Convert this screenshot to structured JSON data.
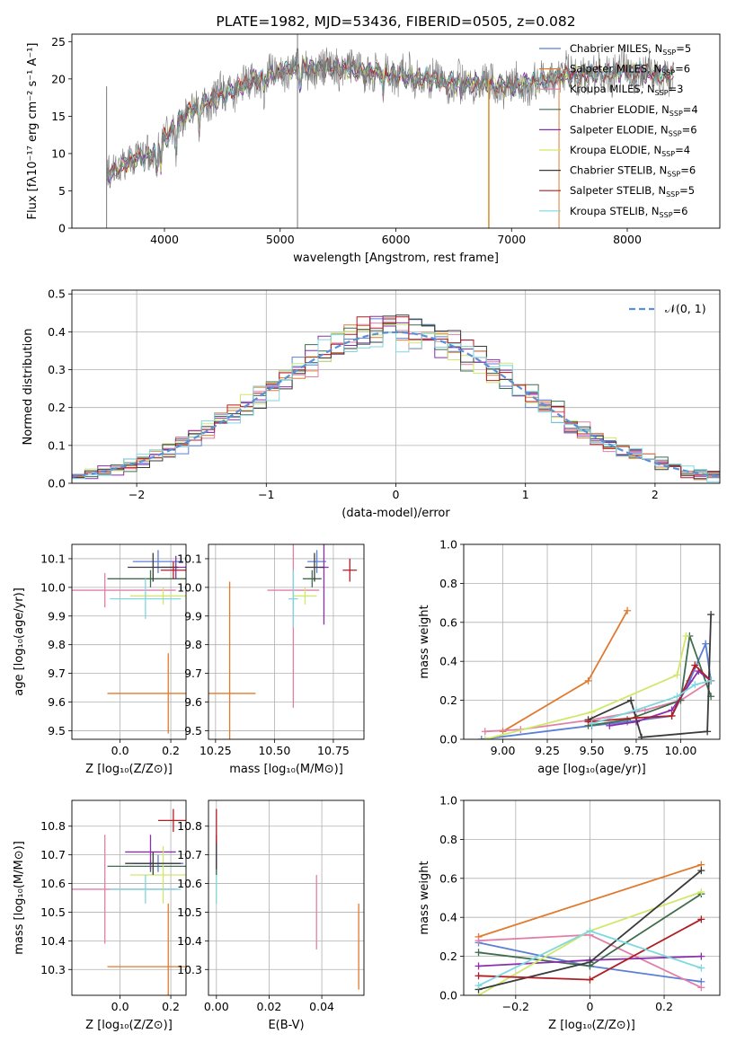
{
  "colors": [
    "#5b7fd6",
    "#e07a2e",
    "#e27fa8",
    "#3f6e4e",
    "#8a2fae",
    "#cfe86a",
    "#3a3a3a",
    "#b01e24",
    "#7fd7df"
  ],
  "chart_data": [
    {
      "id": "spectrum",
      "type": "line",
      "title": "PLATE=1982, MJD=53436, FIBERID=0505, z=0.082",
      "xlabel": "wavelength [Angstrom, rest frame]",
      "ylabel": "Flux [fλ10⁻¹⁷ erg cm⁻² s⁻¹ A⁻¹]",
      "xlim": [
        3200,
        8800
      ],
      "ylim": [
        0,
        26
      ],
      "xticks": [
        4000,
        5000,
        6000,
        7000,
        8000
      ],
      "yticks": [
        0,
        5,
        10,
        15,
        20,
        25
      ],
      "continuum": [
        [
          3500,
          7
        ],
        [
          3700,
          9
        ],
        [
          3900,
          10
        ],
        [
          4000,
          12
        ],
        [
          4200,
          15.5
        ],
        [
          4400,
          17
        ],
        [
          4600,
          18.5
        ],
        [
          4800,
          20
        ],
        [
          5000,
          21
        ],
        [
          5200,
          21.5
        ],
        [
          5500,
          21.5
        ],
        [
          6000,
          20.5
        ],
        [
          6500,
          19.5
        ],
        [
          7000,
          19
        ],
        [
          7500,
          20.5
        ],
        [
          8000,
          21
        ],
        [
          8400,
          20.5
        ]
      ],
      "legend": [
        {
          "name": "Chabrier MILES, N",
          "sub": "SSP",
          "suffix": "=5"
        },
        {
          "name": "Salpeter MILES, N",
          "sub": "SSP",
          "suffix": "=6"
        },
        {
          "name": "Kroupa MILES, N",
          "sub": "SSP",
          "suffix": "=3"
        },
        {
          "name": "Chabrier ELODIE, N",
          "sub": "SSP",
          "suffix": "=4"
        },
        {
          "name": "Salpeter ELODIE, N",
          "sub": "SSP",
          "suffix": "=6"
        },
        {
          "name": "Kroupa ELODIE, N",
          "sub": "SSP",
          "suffix": "=4"
        },
        {
          "name": "Chabrier STELIB, N",
          "sub": "SSP",
          "suffix": "=6"
        },
        {
          "name": "Salpeter STELIB, N",
          "sub": "SSP",
          "suffix": "=5"
        },
        {
          "name": "Kroupa STELIB, N",
          "sub": "SSP",
          "suffix": "=6"
        }
      ],
      "legend_position": "right"
    },
    {
      "id": "residuals",
      "type": "histogram",
      "xlabel": "(data-model)/error",
      "ylabel": "Normed distribution",
      "xlim": [
        -2.5,
        2.5
      ],
      "ylim": [
        0,
        0.51
      ],
      "xticks": [
        -2,
        -1,
        0,
        1,
        2
      ],
      "yticks": [
        0.0,
        0.1,
        0.2,
        0.3,
        0.4,
        0.5
      ],
      "grid": true,
      "bin_width": 0.1,
      "series_count": 9,
      "legend": [
        {
          "name": "𝒩(0, 1)"
        }
      ],
      "legend_position": "top-right"
    },
    {
      "id": "age-vs-z",
      "type": "errorbar",
      "xlabel": "Z [log₁₀(Z/Z⊙)]",
      "ylabel": "age  [log₁₀(age/yr)]",
      "xlim": [
        -0.19,
        0.26
      ],
      "ylim": [
        9.47,
        10.15
      ],
      "xticks": [
        0.0,
        0.2
      ],
      "yticks": [
        9.5,
        9.6,
        9.7,
        9.8,
        9.9,
        10.0,
        10.1
      ],
      "grid": true,
      "points": [
        {
          "series": 0,
          "x": 0.15,
          "y": 10.09,
          "xerr": 0.1,
          "yerr": 0.04
        },
        {
          "series": 1,
          "x": 0.19,
          "y": 9.63,
          "xerr": 0.24,
          "yerr": 0.14
        },
        {
          "series": 2,
          "x": -0.06,
          "y": 9.99,
          "xerr": 0.28,
          "yerr": 0.06
        },
        {
          "series": 3,
          "x": 0.12,
          "y": 10.03,
          "xerr": 0.17,
          "yerr": 0.03
        },
        {
          "series": 4,
          "x": 0.22,
          "y": 10.07,
          "xerr": 0.06,
          "yerr": 0.04
        },
        {
          "series": 5,
          "x": 0.17,
          "y": 9.97,
          "xerr": 0.13,
          "yerr": 0.03
        },
        {
          "series": 6,
          "x": 0.13,
          "y": 10.07,
          "xerr": 0.1,
          "yerr": 0.05
        },
        {
          "series": 7,
          "x": 0.21,
          "y": 10.06,
          "xerr": 0.05,
          "yerr": 0.03
        },
        {
          "series": 8,
          "x": 0.1,
          "y": 9.96,
          "xerr": 0.14,
          "yerr": 0.07
        }
      ]
    },
    {
      "id": "age-vs-mass",
      "type": "errorbar",
      "xlabel": "mass [log₁₀(M/M⊙)]",
      "ylabel": "",
      "xlim": [
        10.22,
        10.88
      ],
      "ylim": [
        9.47,
        10.15
      ],
      "xticks": [
        10.25,
        10.5,
        10.75
      ],
      "yticks": [
        9.5,
        9.6,
        9.7,
        9.8,
        9.9,
        10.0,
        10.1
      ],
      "grid": true,
      "points": [
        {
          "series": 0,
          "x": 10.68,
          "y": 10.09,
          "xerr": 0.04,
          "yerr": 0.04
        },
        {
          "series": 1,
          "x": 10.31,
          "y": 9.63,
          "xerr": 0.11,
          "yerr": 0.39
        },
        {
          "series": 2,
          "x": 10.58,
          "y": 9.99,
          "xerr": 0.11,
          "yerr": 0.41
        },
        {
          "series": 3,
          "x": 10.66,
          "y": 10.03,
          "xerr": 0.04,
          "yerr": 0.03
        },
        {
          "series": 4,
          "x": 10.71,
          "y": 10.07,
          "xerr": 0.02,
          "yerr": 0.2
        },
        {
          "series": 5,
          "x": 10.63,
          "y": 9.97,
          "xerr": 0.05,
          "yerr": 0.03
        },
        {
          "series": 6,
          "x": 10.67,
          "y": 10.07,
          "xerr": 0.04,
          "yerr": 0.05
        },
        {
          "series": 7,
          "x": 10.82,
          "y": 10.06,
          "xerr": 0.03,
          "yerr": 0.04
        },
        {
          "series": 8,
          "x": 10.58,
          "y": 9.96,
          "xerr": 0.02,
          "yerr": 0.1
        }
      ]
    },
    {
      "id": "weight-vs-age",
      "type": "line",
      "xlabel": "age  [log₁₀(age/yr)]",
      "ylabel": "mass weight",
      "xlim": [
        8.78,
        10.22
      ],
      "ylim": [
        0,
        1
      ],
      "xticks": [
        9.0,
        9.25,
        9.5,
        9.75,
        10.0
      ],
      "yticks": [
        0.0,
        0.2,
        0.4,
        0.6,
        0.8,
        1.0
      ],
      "grid": true,
      "series": [
        {
          "series": 0,
          "x": [
            8.88,
            9.5,
            9.7,
            9.95,
            10.05,
            10.14,
            10.17
          ],
          "y": [
            0.0,
            0.07,
            0.09,
            0.12,
            0.3,
            0.49,
            0.3
          ]
        },
        {
          "series": 1,
          "x": [
            9.0,
            9.48,
            9.7
          ],
          "y": [
            0.04,
            0.3,
            0.66
          ]
        },
        {
          "series": 2,
          "x": [
            8.9,
            9.1,
            9.5,
            9.8,
            10.0,
            10.17
          ],
          "y": [
            0.04,
            0.05,
            0.1,
            0.15,
            0.2,
            0.3
          ]
        },
        {
          "series": 3,
          "x": [
            9.48,
            9.7,
            10.0,
            10.05,
            10.17
          ],
          "y": [
            0.07,
            0.1,
            0.2,
            0.53,
            0.22
          ]
        },
        {
          "series": 4,
          "x": [
            9.6,
            9.75,
            9.95,
            10.1,
            10.17
          ],
          "y": [
            0.07,
            0.09,
            0.15,
            0.35,
            0.3
          ]
        },
        {
          "series": 5,
          "x": [
            8.9,
            9.5,
            9.98,
            10.03
          ],
          "y": [
            0.0,
            0.14,
            0.33,
            0.53
          ]
        },
        {
          "series": 6,
          "x": [
            9.48,
            9.72,
            9.78,
            10.15,
            10.17
          ],
          "y": [
            0.1,
            0.2,
            0.01,
            0.04,
            0.64
          ]
        },
        {
          "series": 7,
          "x": [
            9.48,
            9.75,
            9.95,
            10.08,
            10.17
          ],
          "y": [
            0.09,
            0.11,
            0.12,
            0.38,
            0.3
          ]
        },
        {
          "series": 8,
          "x": [
            9.5,
            9.75,
            9.98,
            10.08,
            10.17
          ],
          "y": [
            0.08,
            0.15,
            0.22,
            0.28,
            0.3
          ]
        }
      ]
    },
    {
      "id": "mass-vs-z",
      "type": "errorbar",
      "xlabel": "Z [log₁₀(Z/Z⊙)]",
      "ylabel": "mass [log₁₀(M/M⊙)]",
      "xlim": [
        -0.19,
        0.26
      ],
      "ylim": [
        10.21,
        10.89
      ],
      "xticks": [
        0.0,
        0.2
      ],
      "yticks": [
        10.3,
        10.4,
        10.5,
        10.6,
        10.7,
        10.8
      ],
      "grid": true,
      "points": [
        {
          "series": 0,
          "x": 0.15,
          "y": 10.67,
          "xerr": 0.1,
          "yerr": 0.03
        },
        {
          "series": 1,
          "x": 0.19,
          "y": 10.31,
          "xerr": 0.24,
          "yerr": 0.22
        },
        {
          "series": 2,
          "x": -0.06,
          "y": 10.58,
          "xerr": 0.28,
          "yerr": 0.19
        },
        {
          "series": 3,
          "x": 0.12,
          "y": 10.66,
          "xerr": 0.17,
          "yerr": 0.02
        },
        {
          "series": 4,
          "x": 0.12,
          "y": 10.71,
          "xerr": 0.1,
          "yerr": 0.06
        },
        {
          "series": 5,
          "x": 0.17,
          "y": 10.63,
          "xerr": 0.13,
          "yerr": 0.1
        },
        {
          "series": 6,
          "x": 0.13,
          "y": 10.67,
          "xerr": 0.11,
          "yerr": 0.04
        },
        {
          "series": 7,
          "x": 0.21,
          "y": 10.82,
          "xerr": 0.06,
          "yerr": 0.04
        },
        {
          "series": 8,
          "x": 0.1,
          "y": 10.58,
          "xerr": 0.14,
          "yerr": 0.05
        }
      ]
    },
    {
      "id": "mass-vs-ebv",
      "type": "errorbar",
      "xlabel": "E(B-V)",
      "ylabel": "",
      "xlim": [
        -0.003,
        0.056
      ],
      "ylim": [
        10.21,
        10.89
      ],
      "xticks": [
        0.0,
        0.02,
        0.04
      ],
      "yticks": [
        10.3,
        10.4,
        10.5,
        10.6,
        10.7,
        10.8
      ],
      "grid": true,
      "points": [
        {
          "series": 0,
          "x": 0.0,
          "y": 10.67,
          "xerr": 0,
          "yerr": 0.04
        },
        {
          "series": 1,
          "x": 0.054,
          "y": 10.38,
          "xerr": 0,
          "yerr": 0.15
        },
        {
          "series": 2,
          "x": 0.038,
          "y": 10.5,
          "xerr": 0,
          "yerr": 0.13
        },
        {
          "series": 3,
          "x": 0.0,
          "y": 10.66,
          "xerr": 0,
          "yerr": 0.03
        },
        {
          "series": 4,
          "x": 0.0,
          "y": 10.71,
          "xerr": 0,
          "yerr": 0.06
        },
        {
          "series": 5,
          "x": 0.0,
          "y": 10.58,
          "xerr": 0,
          "yerr": 0.05
        },
        {
          "series": 6,
          "x": 0.0,
          "y": 10.7,
          "xerr": 0,
          "yerr": 0.05
        },
        {
          "series": 7,
          "x": 0.0,
          "y": 10.8,
          "xerr": 0,
          "yerr": 0.06
        },
        {
          "series": 8,
          "x": 0.0,
          "y": 10.58,
          "xerr": 0,
          "yerr": 0.05
        }
      ]
    },
    {
      "id": "weight-vs-z",
      "type": "line",
      "xlabel": "Z [log₁₀(Z/Z⊙)]",
      "ylabel": "mass weight",
      "xlim": [
        -0.34,
        0.35
      ],
      "ylim": [
        0,
        1
      ],
      "xticks": [
        -0.2,
        0.0,
        0.2
      ],
      "yticks": [
        0.0,
        0.2,
        0.4,
        0.6,
        0.8,
        1.0
      ],
      "grid": true,
      "series": [
        {
          "series": 0,
          "x": [
            -0.3,
            0.0,
            0.3
          ],
          "y": [
            0.27,
            0.15,
            0.07
          ]
        },
        {
          "series": 1,
          "x": [
            -0.3,
            0.3
          ],
          "y": [
            0.3,
            0.67
          ]
        },
        {
          "series": 2,
          "x": [
            -0.3,
            0.0,
            0.3
          ],
          "y": [
            0.28,
            0.31,
            0.04
          ]
        },
        {
          "series": 3,
          "x": [
            -0.3,
            0.0,
            0.3
          ],
          "y": [
            0.22,
            0.15,
            0.52
          ]
        },
        {
          "series": 4,
          "x": [
            -0.3,
            0.0,
            0.3
          ],
          "y": [
            0.15,
            0.18,
            0.2
          ]
        },
        {
          "series": 5,
          "x": [
            -0.3,
            0.0,
            0.3
          ],
          "y": [
            0.0,
            0.33,
            0.53
          ]
        },
        {
          "series": 6,
          "x": [
            -0.3,
            0.0,
            0.3
          ],
          "y": [
            0.03,
            0.17,
            0.64
          ]
        },
        {
          "series": 7,
          "x": [
            -0.3,
            0.0,
            0.3
          ],
          "y": [
            0.1,
            0.08,
            0.39
          ]
        },
        {
          "series": 8,
          "x": [
            -0.3,
            0.0,
            0.3
          ],
          "y": [
            0.05,
            0.33,
            0.14
          ]
        }
      ]
    }
  ]
}
